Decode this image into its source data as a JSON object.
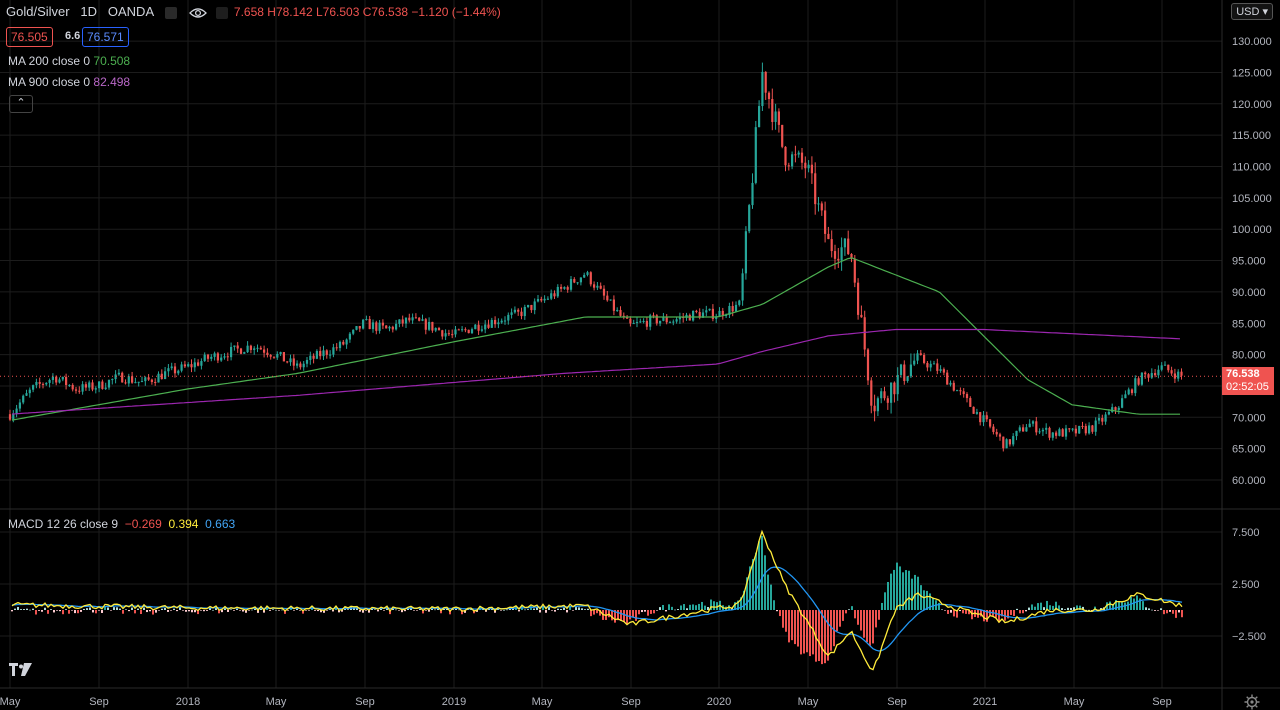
{
  "header": {
    "symbol": "Gold/Silver",
    "interval": "1D",
    "exchange": "OANDA",
    "ohlc": "77.658 H78.142 L76.503 C76.538 −1.120 (−1.44%)",
    "ohlc_open_visible": "7.658",
    "ohlc_rest": "H78.142 L76.503 C76.538 −1.120 (−1.44%)"
  },
  "quote": {
    "bid": "76.505",
    "spread": "6.6",
    "ask": "76.571"
  },
  "indicators": {
    "ma200_label": "MA 200 close 0",
    "ma200_value": "70.508",
    "ma900_label": "MA 900 close 0",
    "ma900_value": "82.498",
    "macd_label": "MACD 12 26 close 9",
    "macd_hist": "−0.269",
    "macd_line": "0.394",
    "macd_signal": "0.663"
  },
  "currency_button": "USD",
  "last_price": {
    "price": "76.538",
    "countdown": "02:52:05"
  },
  "colors": {
    "up": "#26a69a",
    "down": "#ef5350",
    "ma200": "#4caf50",
    "ma900": "#9c27b0",
    "macd": "#2196f3",
    "signal": "#ffeb3b",
    "bid": "#ef5350",
    "ask": "#2962ff"
  },
  "chart_data": [
    {
      "type": "candlestick",
      "title": "Gold/Silver · 1D · OANDA",
      "x_ticks": [
        "May",
        "Sep",
        "2018",
        "May",
        "Sep",
        "2019",
        "May",
        "Sep",
        "2020",
        "May",
        "Sep",
        "2021",
        "May",
        "Sep"
      ],
      "y_ticks": [
        "130.000",
        "125.000",
        "120.000",
        "115.000",
        "110.000",
        "105.000",
        "100.000",
        "95.000",
        "90.000",
        "85.000",
        "80.000",
        "75.000",
        "70.000",
        "65.000",
        "60.000"
      ],
      "ylim": [
        57.5,
        132.5
      ],
      "price_path": [
        {
          "x": "2017-05",
          "y": 70.5
        },
        {
          "x": "2017-06",
          "y": 74.5
        },
        {
          "x": "2017-07",
          "y": 76.5
        },
        {
          "x": "2017-08",
          "y": 74.5
        },
        {
          "x": "2017-09",
          "y": 75.0
        },
        {
          "x": "2017-10",
          "y": 76.5
        },
        {
          "x": "2017-11",
          "y": 75.5
        },
        {
          "x": "2017-12",
          "y": 77.0
        },
        {
          "x": "2018-01",
          "y": 78.0
        },
        {
          "x": "2018-02",
          "y": 79.5
        },
        {
          "x": "2018-03",
          "y": 80.5
        },
        {
          "x": "2018-04",
          "y": 81.5
        },
        {
          "x": "2018-05",
          "y": 80.0
        },
        {
          "x": "2018-06",
          "y": 78.0
        },
        {
          "x": "2018-07",
          "y": 80.0
        },
        {
          "x": "2018-08",
          "y": 81.5
        },
        {
          "x": "2018-09",
          "y": 85.0
        },
        {
          "x": "2018-10",
          "y": 84.0
        },
        {
          "x": "2018-11",
          "y": 85.5
        },
        {
          "x": "2018-12",
          "y": 84.5
        },
        {
          "x": "2019-01",
          "y": 83.0
        },
        {
          "x": "2019-02",
          "y": 84.5
        },
        {
          "x": "2019-03",
          "y": 85.5
        },
        {
          "x": "2019-04",
          "y": 86.5
        },
        {
          "x": "2019-05",
          "y": 88.5
        },
        {
          "x": "2019-06",
          "y": 90.5
        },
        {
          "x": "2019-07",
          "y": 93.0
        },
        {
          "x": "2019-08",
          "y": 88.5
        },
        {
          "x": "2019-09",
          "y": 84.5
        },
        {
          "x": "2019-10",
          "y": 85.5
        },
        {
          "x": "2019-11",
          "y": 85.5
        },
        {
          "x": "2019-12",
          "y": 86.5
        },
        {
          "x": "2020-01",
          "y": 86.5
        },
        {
          "x": "2020-02",
          "y": 88.0
        },
        {
          "x": "2020-03",
          "y": 125.0
        },
        {
          "x": "2020-04",
          "y": 112.0
        },
        {
          "x": "2020-05",
          "y": 110.0
        },
        {
          "x": "2020-06",
          "y": 97.5
        },
        {
          "x": "2020-07",
          "y": 96.5
        },
        {
          "x": "2020-08",
          "y": 72.0
        },
        {
          "x": "2020-09",
          "y": 75.5
        },
        {
          "x": "2020-10",
          "y": 79.5
        },
        {
          "x": "2020-11",
          "y": 77.5
        },
        {
          "x": "2020-12",
          "y": 73.5
        },
        {
          "x": "2021-01",
          "y": 69.5
        },
        {
          "x": "2021-02",
          "y": 65.5
        },
        {
          "x": "2021-03",
          "y": 69.0
        },
        {
          "x": "2021-04",
          "y": 67.5
        },
        {
          "x": "2021-05",
          "y": 67.5
        },
        {
          "x": "2021-06",
          "y": 68.5
        },
        {
          "x": "2021-07",
          "y": 71.5
        },
        {
          "x": "2021-08",
          "y": 76.0
        },
        {
          "x": "2021-09",
          "y": 78.0
        },
        {
          "x": "2021-10",
          "y": 76.5
        }
      ],
      "ma200": [
        {
          "x": "2017-05",
          "y": 69.5
        },
        {
          "x": "2018-01",
          "y": 74.5
        },
        {
          "x": "2018-06",
          "y": 77.0
        },
        {
          "x": "2019-01",
          "y": 82.0
        },
        {
          "x": "2019-07",
          "y": 86.0
        },
        {
          "x": "2020-01",
          "y": 86.0
        },
        {
          "x": "2020-03",
          "y": 88.0
        },
        {
          "x": "2020-06",
          "y": 94.0
        },
        {
          "x": "2020-07",
          "y": 95.5
        },
        {
          "x": "2020-11",
          "y": 90.0
        },
        {
          "x": "2021-01",
          "y": 83.0
        },
        {
          "x": "2021-03",
          "y": 76.0
        },
        {
          "x": "2021-05",
          "y": 72.0
        },
        {
          "x": "2021-08",
          "y": 70.5
        },
        {
          "x": "2021-10",
          "y": 70.5
        }
      ],
      "ma900": [
        {
          "x": "2017-05",
          "y": 70.5
        },
        {
          "x": "2018-06",
          "y": 73.5
        },
        {
          "x": "2019-06",
          "y": 77.0
        },
        {
          "x": "2020-01",
          "y": 78.5
        },
        {
          "x": "2020-03",
          "y": 80.5
        },
        {
          "x": "2020-06",
          "y": 83.0
        },
        {
          "x": "2020-09",
          "y": 84.0
        },
        {
          "x": "2021-01",
          "y": 84.0
        },
        {
          "x": "2021-10",
          "y": 82.5
        }
      ],
      "last_price": 76.538
    },
    {
      "type": "line",
      "title": "MACD 12 26 close 9",
      "y_ticks": [
        "7.500",
        "2.500",
        "−2.500"
      ],
      "macd": [
        {
          "x": "2017-05",
          "y": 0.5
        },
        {
          "x": "2018-01",
          "y": 0.2
        },
        {
          "x": "2019-01",
          "y": 0.1
        },
        {
          "x": "2019-07",
          "y": 0.4
        },
        {
          "x": "2019-09",
          "y": -1.4
        },
        {
          "x": "2020-01",
          "y": 0.2
        },
        {
          "x": "2020-02",
          "y": 0.5
        },
        {
          "x": "2020-03",
          "y": 7.5
        },
        {
          "x": "2020-04",
          "y": 2.5
        },
        {
          "x": "2020-05",
          "y": -1.0
        },
        {
          "x": "2020-06",
          "y": -4.5
        },
        {
          "x": "2020-07",
          "y": -2.0
        },
        {
          "x": "2020-08",
          "y": -6.0
        },
        {
          "x": "2020-09",
          "y": 0.0
        },
        {
          "x": "2020-10",
          "y": 1.5
        },
        {
          "x": "2020-12",
          "y": 0.0
        },
        {
          "x": "2021-02",
          "y": -1.2
        },
        {
          "x": "2021-04",
          "y": 0.0
        },
        {
          "x": "2021-06",
          "y": 0.0
        },
        {
          "x": "2021-08",
          "y": 1.5
        },
        {
          "x": "2021-10",
          "y": 0.4
        }
      ]
    }
  ]
}
